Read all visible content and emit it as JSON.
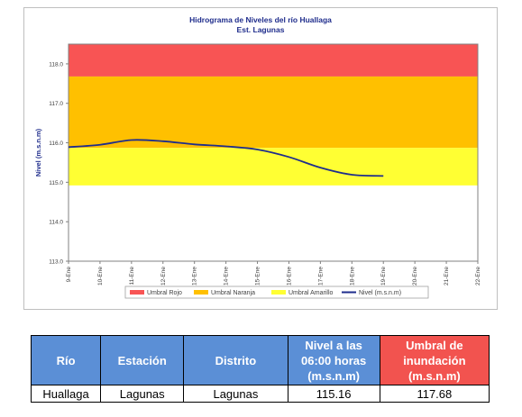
{
  "chart_data": {
    "type": "line",
    "title": "Hidrograma de Niveles del río Huallaga",
    "subtitle": "Est. Lagunas",
    "ylabel": "Nivel (m.s.n.m)",
    "ylim": [
      113.0,
      118.5
    ],
    "yticks": [
      "113.0",
      "114.0",
      "115.0",
      "116.0",
      "117.0",
      "118.0"
    ],
    "x_categories": [
      "9-Ene",
      "10-Ene",
      "11-Ene",
      "12-Ene",
      "13-Ene",
      "14-Ene",
      "15-Ene",
      "16-Ene",
      "17-Ene",
      "18-Ene",
      "19-Ene",
      "20-Ene",
      "21-Ene",
      "22-Ene"
    ],
    "bands": [
      {
        "name": "Umbral Rojo",
        "from": 117.68,
        "to": 118.5,
        "color": "#f85454"
      },
      {
        "name": "Umbral Naranja",
        "from": 115.87,
        "to": 117.68,
        "color": "#ffc000"
      },
      {
        "name": "Umbral Amarillo",
        "from": 114.92,
        "to": 115.87,
        "color": "#ffff33"
      }
    ],
    "series": [
      {
        "name": "Nivel (m.s.n.m)",
        "color": "#1f2d8c",
        "x": [
          0,
          1,
          2,
          3,
          4,
          5,
          6,
          7,
          8,
          9,
          10
        ],
        "values": [
          115.89,
          115.95,
          116.07,
          116.04,
          115.96,
          115.91,
          115.83,
          115.64,
          115.37,
          115.19,
          115.16
        ]
      }
    ],
    "legend": [
      "Umbral Rojo",
      "Umbral Naranja",
      "Umbral Amarillo",
      "Nivel (m.s.n.m)"
    ],
    "legend_position": "bottom",
    "grid": false
  },
  "table": {
    "headers": [
      "Río",
      "Estación",
      "Distrito",
      "Nivel a las 06:00 horas (m.s.n.m)",
      "Umbral de inundación (m.s.n.m)"
    ],
    "row": [
      "Huallaga",
      "Lagunas",
      "Lagunas",
      "115.16",
      "117.68"
    ]
  }
}
